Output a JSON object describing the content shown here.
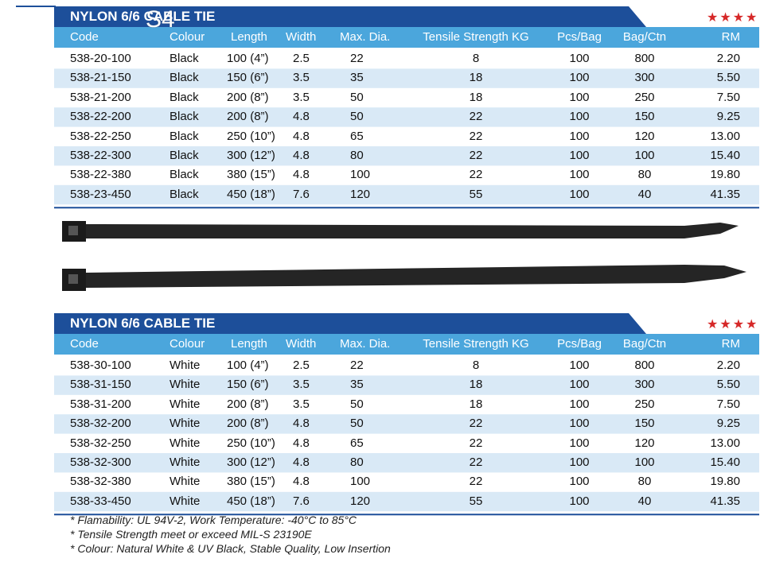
{
  "page_label": "S4",
  "tables": [
    {
      "title": "NYLON 6/6 CABLE TIE",
      "stars": "★★★★",
      "columns": [
        "Code",
        "Colour",
        "Length",
        "Width",
        "Max. Dia.",
        "Tensile Strength KG",
        "Pcs/Bag",
        "Bag/Ctn",
        "RM"
      ],
      "rows": [
        [
          "538-20-100",
          "Black",
          "100 (4”)",
          "2.5",
          "22",
          "8",
          "100",
          "800",
          "2.20"
        ],
        [
          "538-21-150",
          "Black",
          "150 (6”)",
          "3.5",
          "35",
          "18",
          "100",
          "300",
          "5.50"
        ],
        [
          "538-21-200",
          "Black",
          "200 (8”)",
          "3.5",
          "50",
          "18",
          "100",
          "250",
          "7.50"
        ],
        [
          "538-22-200",
          "Black",
          "200 (8”)",
          "4.8",
          "50",
          "22",
          "100",
          "150",
          "9.25"
        ],
        [
          "538-22-250",
          "Black",
          "250 (10”)",
          "4.8",
          "65",
          "22",
          "100",
          "120",
          "13.00"
        ],
        [
          "538-22-300",
          "Black",
          "300 (12”)",
          "4.8",
          "80",
          "22",
          "100",
          "100",
          "15.40"
        ],
        [
          "538-22-380",
          "Black",
          "380 (15”)",
          "4.8",
          "100",
          "22",
          "100",
          "80",
          "19.80"
        ],
        [
          "538-23-450",
          "Black",
          "450 (18”)",
          "7.6",
          "120",
          "55",
          "100",
          "40",
          "41.35"
        ]
      ]
    },
    {
      "title": "NYLON 6/6 CABLE TIE",
      "stars": "★★★★",
      "columns": [
        "Code",
        "Colour",
        "Length",
        "Width",
        "Max. Dia.",
        "Tensile Strength KG",
        "Pcs/Bag",
        "Bag/Ctn",
        "RM"
      ],
      "rows": [
        [
          "538-30-100",
          "White",
          "100 (4”)",
          "2.5",
          "22",
          "8",
          "100",
          "800",
          "2.20"
        ],
        [
          "538-31-150",
          "White",
          "150 (6”)",
          "3.5",
          "35",
          "18",
          "100",
          "300",
          "5.50"
        ],
        [
          "538-31-200",
          "White",
          "200 (8”)",
          "3.5",
          "50",
          "18",
          "100",
          "250",
          "7.50"
        ],
        [
          "538-32-200",
          "White",
          "200 (8”)",
          "4.8",
          "50",
          "22",
          "100",
          "150",
          "9.25"
        ],
        [
          "538-32-250",
          "White",
          "250 (10”)",
          "4.8",
          "65",
          "22",
          "100",
          "120",
          "13.00"
        ],
        [
          "538-32-300",
          "White",
          "300 (12”)",
          "4.8",
          "80",
          "22",
          "100",
          "100",
          "15.40"
        ],
        [
          "538-32-380",
          "White",
          "380 (15”)",
          "4.8",
          "100",
          "22",
          "100",
          "80",
          "19.80"
        ],
        [
          "538-33-450",
          "White",
          "450 (18”)",
          "7.6",
          "120",
          "55",
          "100",
          "40",
          "41.35"
        ]
      ]
    }
  ],
  "notes": [
    "* Flamability: UL 94V-2, Work Temperature: -40°C to 85°C",
    "* Tensile Strength meet or exceed MIL-S 23190E",
    "* Colour: Natural White & UV Black, Stable Quality, Low Insertion"
  ]
}
